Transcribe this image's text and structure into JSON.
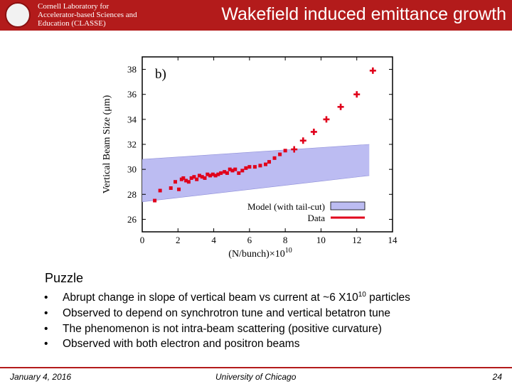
{
  "header": {
    "logo_lines": [
      "Cornell Laboratory for",
      "Accelerator-based Sciences and",
      "Education (CLASSE)"
    ],
    "title": "Wakefield induced emittance growth"
  },
  "chart_data": {
    "type": "scatter",
    "panel_label": "b)",
    "xlabel": "(N/bunch)×10",
    "xlabel_exp": "10",
    "ylabel": "Vertical Beam Size (μm)",
    "xlim": [
      0,
      14
    ],
    "ylim": [
      25,
      39
    ],
    "xticks": [
      0,
      2,
      4,
      6,
      8,
      10,
      12,
      14
    ],
    "yticks": [
      26,
      28,
      30,
      32,
      34,
      36,
      38
    ],
    "legend": {
      "position": "bottom-right",
      "entries": [
        {
          "label": "Model (with tail-cut)",
          "color": "#bcbcf2"
        },
        {
          "label": "Data",
          "color": "#e0001b"
        }
      ]
    },
    "model_band": {
      "name": "Model (with tail-cut)",
      "x": [
        0,
        12.7
      ],
      "lower": [
        27.4,
        29.5
      ],
      "upper": [
        30.8,
        32.0
      ],
      "color": "#bcbcf2"
    },
    "series": [
      {
        "name": "Data",
        "color": "#e0001b",
        "x": [
          0.7,
          1.0,
          1.6,
          1.85,
          2.05,
          2.2,
          2.3,
          2.45,
          2.6,
          2.75,
          2.9,
          3.05,
          3.2,
          3.35,
          3.5,
          3.65,
          3.8,
          3.95,
          4.1,
          4.25,
          4.4,
          4.6,
          4.75,
          4.9,
          5.05,
          5.2,
          5.4,
          5.6,
          5.8,
          6.0,
          6.3,
          6.6,
          6.9,
          7.1,
          7.4,
          7.7,
          8.0,
          8.5,
          9.0,
          9.6,
          10.3,
          11.1,
          12.0,
          12.9
        ],
        "y": [
          27.5,
          28.3,
          28.5,
          29.0,
          28.4,
          29.2,
          29.3,
          29.1,
          29.0,
          29.3,
          29.4,
          29.2,
          29.5,
          29.4,
          29.3,
          29.6,
          29.5,
          29.6,
          29.5,
          29.6,
          29.7,
          29.8,
          29.7,
          30.0,
          29.9,
          30.0,
          29.7,
          29.9,
          30.1,
          30.2,
          30.2,
          30.3,
          30.4,
          30.6,
          30.9,
          31.2,
          31.5,
          31.6,
          32.3,
          33.0,
          34.0,
          35.0,
          36.0,
          37.9
        ]
      }
    ]
  },
  "puzzle": {
    "title": "Puzzle",
    "bullet_char": "•",
    "items": [
      {
        "text": "Abrupt change in slope of vertical beam vs current at ~6 X10",
        "sup": "10",
        "suffix": "particles"
      },
      {
        "text": "Observed to depend on synchrotron tune and vertical betatron tune"
      },
      {
        "text": "The phenomenon is not intra-beam scattering (positive curvature)"
      },
      {
        "text": "Observed with both electron and positron beams"
      }
    ]
  },
  "footer": {
    "date": "January 4, 2016",
    "university": "University of Chicago",
    "page": "24"
  }
}
